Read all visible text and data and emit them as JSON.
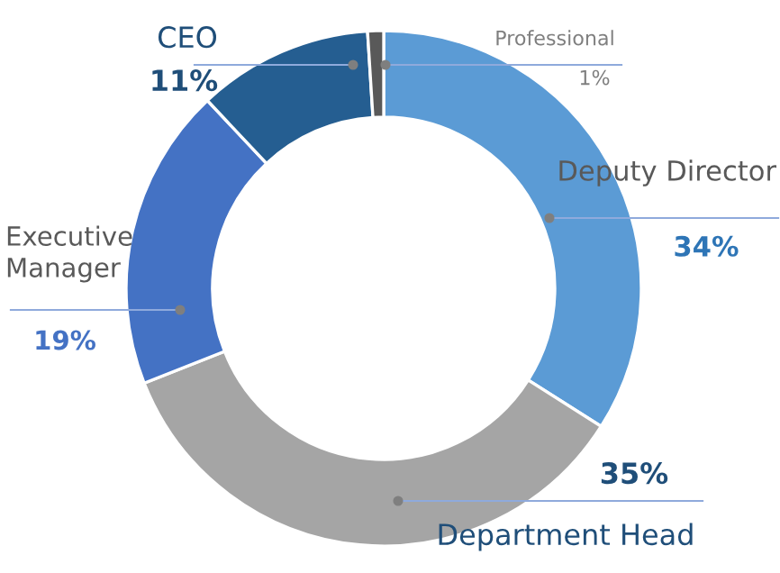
{
  "chart_data": {
    "type": "donut",
    "categories": [
      "Deputy Director",
      "Department Head",
      "Executive\nManager",
      "CEO",
      "Professional"
    ],
    "values": [
      34,
      35,
      19,
      11,
      1
    ],
    "value_labels": [
      "34%",
      "35%",
      "19%",
      "11%",
      "1%"
    ],
    "colors": [
      "#5b9bd5",
      "#a5a5a5",
      "#4472c4",
      "#255e91",
      "#595959"
    ],
    "legend": false
  }
}
